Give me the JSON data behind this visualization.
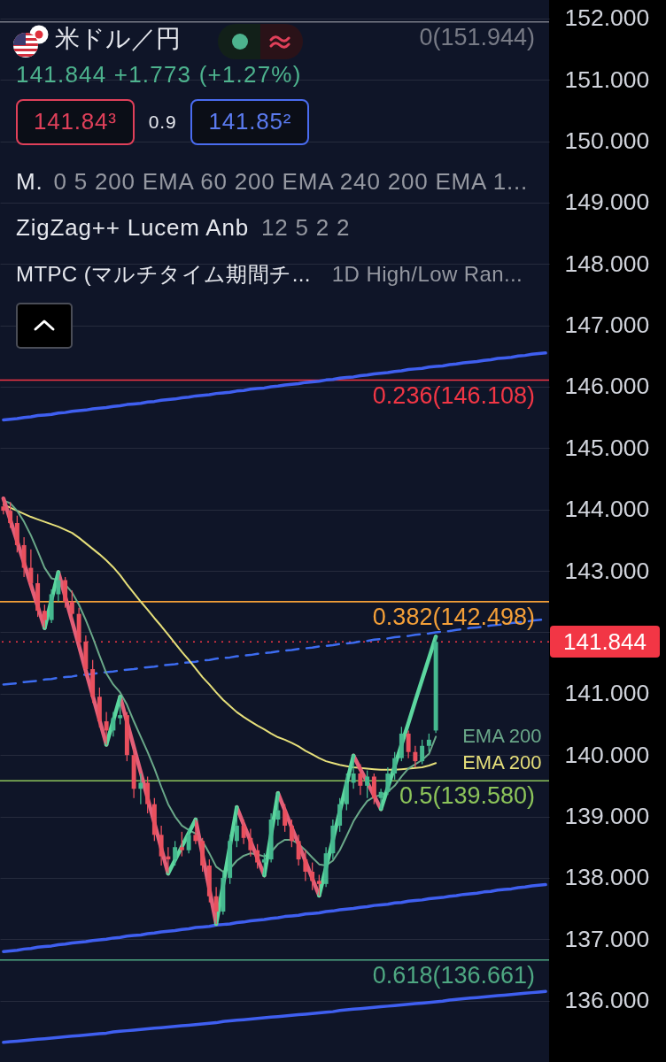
{
  "chart_data": {
    "type": "candlestick",
    "title": "米ドル／円",
    "subtitle": "141.844 +1.773 (+1.27%)",
    "annotations": [
      "141.84³",
      "0.9",
      "141.85²",
      "M.",
      "0 5 200 EMA 60 200 EMA 240 200 EMA 1...",
      "ZigZag++ Lucem Anb",
      "12 5 2 2",
      "MTPC (マルチタイム期間チ...",
      "1D High/Low Ran..."
    ],
    "categories": [
      null,
      null,
      null,
      null,
      null,
      null,
      null,
      null,
      null,
      null,
      null,
      null,
      null,
      null,
      null,
      null,
      null,
      null,
      null,
      null,
      null,
      null,
      null,
      null,
      null,
      null,
      null,
      null,
      null,
      null,
      null,
      null,
      null,
      null,
      null,
      null,
      null,
      null,
      null,
      null,
      null,
      null,
      null,
      null,
      null,
      null,
      null,
      null,
      null,
      null,
      null,
      null,
      null,
      null,
      null,
      null,
      null,
      null,
      null,
      null,
      null,
      null,
      null,
      null,
      null,
      null,
      null,
      null,
      null,
      null,
      null,
      null,
      null,
      null,
      null,
      null,
      null,
      null,
      null,
      null
    ],
    "ohlc": [
      [
        144.05,
        144.18,
        143.92,
        143.98
      ],
      [
        143.98,
        144.12,
        143.7,
        143.78
      ],
      [
        143.78,
        143.9,
        143.3,
        143.42
      ],
      [
        143.42,
        143.55,
        142.9,
        143.05
      ],
      [
        143.05,
        143.35,
        142.7,
        142.8
      ],
      [
        142.8,
        142.95,
        142.25,
        142.35
      ],
      [
        142.35,
        142.45,
        142.07,
        142.2
      ],
      [
        142.2,
        142.7,
        142.15,
        142.62
      ],
      [
        142.62,
        142.98,
        142.5,
        142.85
      ],
      [
        142.85,
        142.9,
        142.4,
        142.5
      ],
      [
        142.5,
        142.68,
        142.2,
        142.3
      ],
      [
        142.3,
        142.4,
        141.75,
        141.85
      ],
      [
        141.85,
        141.95,
        141.3,
        141.4
      ],
      [
        141.4,
        141.55,
        140.85,
        140.95
      ],
      [
        140.95,
        141.1,
        140.45,
        140.55
      ],
      [
        140.55,
        140.7,
        140.17,
        140.4
      ],
      [
        140.4,
        140.7,
        140.3,
        140.6
      ],
      [
        140.6,
        140.95,
        140.5,
        140.65
      ],
      [
        140.65,
        140.7,
        139.9,
        140.0
      ],
      [
        140.0,
        140.1,
        139.3,
        139.45
      ],
      [
        139.45,
        139.7,
        139.2,
        139.55
      ],
      [
        139.55,
        139.65,
        139.05,
        139.2
      ],
      [
        139.2,
        139.3,
        138.6,
        138.7
      ],
      [
        138.7,
        138.85,
        138.2,
        138.35
      ],
      [
        138.35,
        138.5,
        138.07,
        138.3
      ],
      [
        138.3,
        138.6,
        138.2,
        138.5
      ],
      [
        138.5,
        138.75,
        138.35,
        138.45
      ],
      [
        138.45,
        138.8,
        138.4,
        138.7
      ],
      [
        138.7,
        138.95,
        138.55,
        138.6
      ],
      [
        138.6,
        138.65,
        138.1,
        138.2
      ],
      [
        138.2,
        138.3,
        137.6,
        137.7
      ],
      [
        137.7,
        137.85,
        137.25,
        137.45
      ],
      [
        137.45,
        138.1,
        137.4,
        138.0
      ],
      [
        138.0,
        138.7,
        137.9,
        138.6
      ],
      [
        138.6,
        139.15,
        138.5,
        138.85
      ],
      [
        138.85,
        138.95,
        138.55,
        138.65
      ],
      [
        138.65,
        138.8,
        138.35,
        138.45
      ],
      [
        138.45,
        138.55,
        138.15,
        138.25
      ],
      [
        138.25,
        138.4,
        138.04,
        138.3
      ],
      [
        138.3,
        139.05,
        138.25,
        138.95
      ],
      [
        138.95,
        139.38,
        138.85,
        139.1
      ],
      [
        139.1,
        139.2,
        138.75,
        138.85
      ],
      [
        138.85,
        138.95,
        138.5,
        138.6
      ],
      [
        138.6,
        138.7,
        138.2,
        138.3
      ],
      [
        138.3,
        138.45,
        137.95,
        138.1
      ],
      [
        138.1,
        138.25,
        137.8,
        137.95
      ],
      [
        137.95,
        138.05,
        137.71,
        137.9
      ],
      [
        137.9,
        138.5,
        137.85,
        138.4
      ],
      [
        138.4,
        138.95,
        138.3,
        138.85
      ],
      [
        138.85,
        139.3,
        138.75,
        139.2
      ],
      [
        139.2,
        139.7,
        139.1,
        139.55
      ],
      [
        139.55,
        139.99,
        139.45,
        139.7
      ],
      [
        139.7,
        139.85,
        139.35,
        139.5
      ],
      [
        139.5,
        139.75,
        139.3,
        139.65
      ],
      [
        139.65,
        139.7,
        139.2,
        139.3
      ],
      [
        139.3,
        139.45,
        139.12,
        139.4
      ],
      [
        139.4,
        139.8,
        139.35,
        139.7
      ],
      [
        139.7,
        140.05,
        139.6,
        139.95
      ],
      [
        139.95,
        140.46,
        139.9,
        140.35
      ],
      [
        140.35,
        140.4,
        139.95,
        140.05
      ],
      [
        140.05,
        140.15,
        139.8,
        139.9
      ],
      [
        139.9,
        140.25,
        139.85,
        140.15
      ],
      [
        140.15,
        140.35,
        140.05,
        140.25
      ],
      [
        140.4,
        141.93,
        140.36,
        141.844
      ],
      null,
      null,
      null,
      null,
      null,
      null,
      null,
      null,
      null,
      null,
      null,
      null,
      null,
      null,
      null,
      null
    ],
    "colors": [
      "#e9505e",
      "#e9505e",
      "#e9505e",
      "#e9505e",
      "#e9505e",
      "#e9505e",
      "#e9505e",
      "#45b88f",
      "#45b88f",
      "#e9505e",
      "#e9505e",
      "#e9505e",
      "#e9505e",
      "#e9505e",
      "#e9505e",
      "#e9505e",
      "#45b88f",
      "#45b88f",
      "#e9505e",
      "#e9505e",
      "#45b88f",
      "#e9505e",
      "#e9505e",
      "#e9505e",
      "#e9505e",
      "#45b88f",
      "#e9505e",
      "#45b88f",
      "#e9505e",
      "#e9505e",
      "#e9505e",
      "#e9505e",
      "#45b88f",
      "#45b88f",
      "#45b88f",
      "#e9505e",
      "#e9505e",
      "#e9505e",
      "#45b88f",
      "#45b88f",
      "#45b88f",
      "#e9505e",
      "#e9505e",
      "#e9505e",
      "#e9505e",
      "#e9505e",
      "#e9505e",
      "#45b88f",
      "#45b88f",
      "#45b88f",
      "#45b88f",
      "#45b88f",
      "#e9505e",
      "#45b88f",
      "#e9505e",
      "#45b88f",
      "#45b88f",
      "#45b88f",
      "#45b88f",
      "#e9505e",
      "#e9505e",
      "#45b88f",
      "#45b88f",
      "#45b88f",
      null,
      null,
      null,
      null,
      null,
      null,
      null,
      null,
      null,
      null,
      null,
      null,
      null,
      null,
      null,
      null
    ],
    "series": [
      {
        "type": "line",
        "color": "#3f5ff0",
        "values": [
          135.32,
          135.33,
          135.34,
          135.35,
          135.36,
          135.37,
          135.38,
          135.39,
          135.4,
          135.41,
          135.42,
          135.43,
          135.44,
          135.45,
          135.46,
          135.47,
          135.49,
          135.5,
          135.51,
          135.52,
          135.53,
          135.54,
          135.55,
          135.56,
          135.57,
          135.58,
          135.59,
          135.6,
          135.61,
          135.62,
          135.63,
          135.64,
          135.66,
          135.67,
          135.68,
          135.69,
          135.7,
          135.71,
          135.72,
          135.73,
          135.74,
          135.75,
          135.76,
          135.77,
          135.78,
          135.79,
          135.8,
          135.81,
          135.82,
          135.84,
          135.85,
          135.86,
          135.87,
          135.88,
          135.89,
          135.9,
          135.91,
          135.92,
          135.93,
          135.94,
          135.95,
          135.96,
          135.97,
          135.98,
          135.99,
          136.01,
          136.02,
          136.03,
          136.04,
          136.05,
          136.06,
          136.07,
          136.08,
          136.09,
          136.1,
          136.11,
          136.12,
          136.13,
          136.14,
          136.15
        ]
      },
      {
        "type": "line",
        "color": "#3f5ff0",
        "values": [
          136.8,
          136.81,
          136.82,
          136.84,
          136.85,
          136.87,
          136.88,
          136.89,
          136.91,
          136.92,
          136.94,
          136.95,
          136.96,
          136.98,
          136.99,
          137.0,
          137.02,
          137.03,
          137.05,
          137.06,
          137.07,
          137.09,
          137.1,
          137.12,
          137.13,
          137.14,
          137.16,
          137.17,
          137.19,
          137.2,
          137.21,
          137.23,
          137.24,
          137.25,
          137.27,
          137.28,
          137.3,
          137.31,
          137.32,
          137.34,
          137.35,
          137.37,
          137.38,
          137.39,
          137.41,
          137.42,
          137.43,
          137.45,
          137.46,
          137.48,
          137.49,
          137.5,
          137.52,
          137.53,
          137.55,
          137.56,
          137.57,
          137.59,
          137.6,
          137.62,
          137.63,
          137.64,
          137.66,
          137.67,
          137.68,
          137.7,
          137.71,
          137.73,
          137.74,
          137.75,
          137.77,
          137.78,
          137.8,
          137.81,
          137.82,
          137.84,
          137.85,
          137.87,
          137.88,
          137.89
        ]
      },
      {
        "type": "line",
        "color": "#3d6cf0",
        "line_style": "dashed",
        "values": [
          141.15,
          141.16,
          141.17,
          141.19,
          141.2,
          141.21,
          141.23,
          141.24,
          141.26,
          141.27,
          141.28,
          141.3,
          141.31,
          141.32,
          141.34,
          141.35,
          141.36,
          141.38,
          141.39,
          141.4,
          141.42,
          141.43,
          141.44,
          141.46,
          141.47,
          141.48,
          141.5,
          141.51,
          141.52,
          141.54,
          141.55,
          141.57,
          141.58,
          141.59,
          141.61,
          141.62,
          141.63,
          141.65,
          141.66,
          141.67,
          141.69,
          141.7,
          141.71,
          141.73,
          141.74,
          141.75,
          141.77,
          141.78,
          141.79,
          141.81,
          141.82,
          141.83,
          141.85,
          141.86,
          141.88,
          141.89,
          141.9,
          141.92,
          141.93,
          141.94,
          141.96,
          141.97,
          141.98,
          142.0,
          142.01,
          142.02,
          142.04,
          142.05,
          142.07,
          142.08,
          142.09,
          142.11,
          142.12,
          142.13,
          142.15,
          142.16,
          142.17,
          142.19,
          142.2,
          142.21
        ]
      },
      {
        "type": "line",
        "color": "#3f5ff0",
        "values": [
          145.46,
          145.47,
          145.48,
          145.5,
          145.51,
          145.53,
          145.54,
          145.55,
          145.57,
          145.58,
          145.6,
          145.61,
          145.62,
          145.64,
          145.65,
          145.66,
          145.68,
          145.69,
          145.71,
          145.72,
          145.73,
          145.75,
          145.76,
          145.78,
          145.79,
          145.8,
          145.82,
          145.83,
          145.85,
          145.86,
          145.87,
          145.89,
          145.9,
          145.91,
          145.93,
          145.94,
          145.96,
          145.97,
          145.98,
          146.0,
          146.01,
          146.03,
          146.04,
          146.05,
          146.07,
          146.08,
          146.09,
          146.11,
          146.12,
          146.14,
          146.15,
          146.16,
          146.18,
          146.19,
          146.21,
          146.22,
          146.23,
          146.25,
          146.26,
          146.28,
          146.29,
          146.3,
          146.32,
          146.33,
          146.34,
          146.36,
          146.37,
          146.39,
          146.4,
          146.41,
          146.43,
          146.44,
          146.46,
          146.47,
          146.48,
          146.5,
          146.51,
          146.53,
          146.54,
          146.55
        ]
      },
      {
        "type": "line",
        "name": "EMA 200",
        "color": "#e6df7a",
        "values": [
          144.08,
          144.03,
          143.98,
          143.93,
          143.88,
          143.84,
          143.8,
          143.76,
          143.72,
          143.67,
          143.62,
          143.54,
          143.45,
          143.36,
          143.27,
          143.17,
          143.06,
          142.93,
          142.78,
          142.64,
          142.5,
          142.37,
          142.23,
          142.1,
          141.96,
          141.82,
          141.68,
          141.55,
          141.41,
          141.27,
          141.15,
          141.02,
          140.9,
          140.8,
          140.7,
          140.62,
          140.55,
          140.48,
          140.42,
          140.35,
          140.29,
          140.25,
          140.2,
          140.14,
          140.07,
          140.01,
          139.95,
          139.9,
          139.87,
          139.84,
          139.82,
          139.8,
          139.79,
          139.78,
          139.77,
          139.76,
          139.76,
          139.76,
          139.77,
          139.78,
          139.79,
          139.8,
          139.83,
          139.87,
          null,
          null,
          null,
          null,
          null,
          null,
          null,
          null,
          null,
          null,
          null,
          null,
          null,
          null,
          null,
          null
        ]
      },
      {
        "type": "line",
        "name": "EMA 200",
        "color": "#6aa889",
        "values": [
          144.15,
          144.1,
          143.98,
          143.8,
          143.58,
          143.32,
          143.05,
          142.88,
          142.85,
          142.78,
          142.65,
          142.45,
          142.2,
          141.92,
          141.62,
          141.33,
          141.15,
          141.02,
          140.82,
          140.55,
          140.3,
          140.05,
          139.78,
          139.48,
          139.2,
          139.0,
          138.85,
          138.78,
          138.72,
          138.6,
          138.4,
          138.18,
          138.1,
          138.15,
          138.28,
          138.36,
          138.4,
          138.38,
          138.35,
          138.42,
          138.55,
          138.62,
          138.62,
          138.55,
          138.45,
          138.33,
          138.22,
          138.2,
          138.28,
          138.45,
          138.68,
          138.92,
          139.1,
          139.25,
          139.32,
          139.35,
          139.4,
          139.5,
          139.65,
          139.78,
          139.85,
          139.92,
          140.02,
          140.3,
          null,
          null,
          null,
          null,
          null,
          null,
          null,
          null,
          null,
          null,
          null,
          null,
          null,
          null,
          null,
          null
        ]
      },
      {
        "type": "line",
        "color": "#e35f78",
        "values": [
          144.18,
          143.83,
          143.48,
          143.13,
          142.77,
          142.42,
          142.07,
          null,
          142.98,
          142.58,
          142.18,
          141.78,
          141.37,
          140.97,
          140.57,
          140.17,
          null,
          140.95,
          140.54,
          140.13,
          139.72,
          139.3,
          138.89,
          138.48,
          138.07,
          null,
          null,
          null,
          138.95,
          138.38,
          137.82,
          137.25,
          null,
          null,
          139.15,
          138.87,
          138.6,
          138.32,
          138.04,
          null,
          139.38,
          139.1,
          138.82,
          138.55,
          138.27,
          137.99,
          137.71,
          null,
          null,
          null,
          null,
          139.99,
          139.77,
          139.56,
          139.34,
          139.12,
          null,
          null,
          null,
          null,
          null,
          null,
          null,
          null,
          null,
          null,
          null,
          null,
          null,
          null,
          null,
          null,
          null,
          null,
          null,
          null,
          null,
          null,
          null,
          null
        ]
      },
      {
        "type": "line",
        "color": "#5cd69f",
        "values": [
          null,
          null,
          null,
          null,
          null,
          null,
          142.07,
          142.53,
          142.98,
          null,
          null,
          null,
          null,
          null,
          null,
          140.17,
          140.56,
          140.95,
          null,
          null,
          null,
          null,
          null,
          null,
          138.07,
          138.29,
          138.51,
          138.73,
          138.95,
          null,
          null,
          137.25,
          137.88,
          138.52,
          139.15,
          null,
          null,
          null,
          138.04,
          138.71,
          139.38,
          null,
          null,
          null,
          null,
          null,
          137.71,
          138.17,
          138.62,
          139.08,
          139.54,
          139.99,
          null,
          null,
          null,
          139.12,
          139.47,
          139.82,
          140.17,
          140.52,
          140.88,
          141.23,
          141.58,
          141.93,
          null,
          null,
          null,
          null,
          null,
          null,
          null,
          null,
          null,
          null,
          null,
          null,
          null,
          null,
          null,
          null
        ]
      }
    ],
    "ylim": [
      135.0,
      152.3
    ],
    "yticks": [
      {
        "value": 136,
        "label": "136.000"
      },
      {
        "value": 137,
        "label": "137.000"
      },
      {
        "value": 138,
        "label": "138.000"
      },
      {
        "value": 139,
        "label": "139.000"
      },
      {
        "value": 140,
        "label": "140.000"
      },
      {
        "value": 141,
        "label": "141.000"
      },
      {
        "value": 142,
        "label": null
      },
      {
        "value": 143,
        "label": "143.000"
      },
      {
        "value": 144,
        "label": "144.000"
      },
      {
        "value": 145,
        "label": "145.000"
      },
      {
        "value": 146,
        "label": "146.000"
      },
      {
        "value": 147,
        "label": "147.000"
      },
      {
        "value": 148,
        "label": "148.000"
      },
      {
        "value": 149,
        "label": "149.000"
      },
      {
        "value": 150,
        "label": "150.000"
      },
      {
        "value": 151,
        "label": "151.000"
      },
      {
        "value": 152,
        "label": "152.000"
      }
    ],
    "ref_lines": [
      {
        "axis": "y",
        "value": 151.944,
        "label": "0(151.944)",
        "color": "#787b86"
      },
      {
        "axis": "y",
        "value": 146.108,
        "label": "0.236(146.108)",
        "color": "#f23645"
      },
      {
        "axis": "y",
        "value": 142.498,
        "label": "0.382(142.498)",
        "color": "#f5a038"
      },
      {
        "axis": "y",
        "value": 139.58,
        "label": "0.5(139.580)",
        "color": "#8cc45a"
      },
      {
        "axis": "y",
        "value": 136.661,
        "label": "0.618(136.661)",
        "color": "#4ea882"
      },
      {
        "axis": "y",
        "value": 141.844,
        "label": "141.844",
        "color": "#f23645",
        "line_style": "dotted"
      }
    ],
    "grid": "y",
    "tick_labels": "y"
  }
}
